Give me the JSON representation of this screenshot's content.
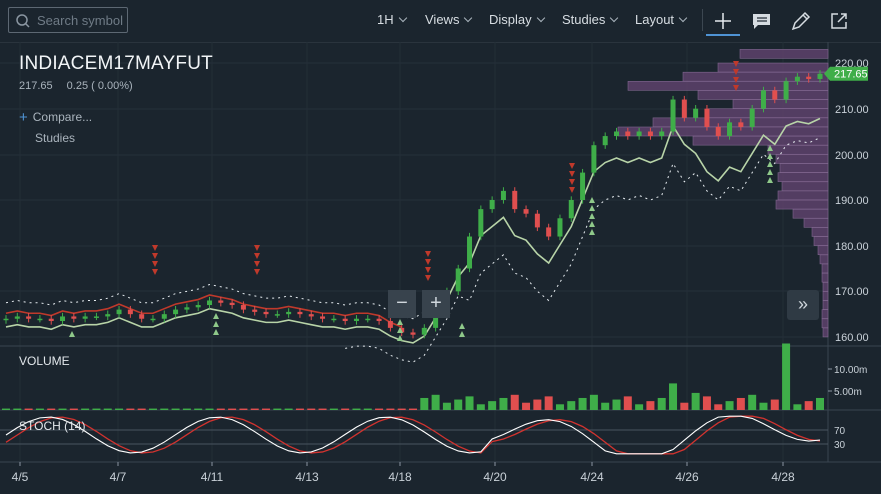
{
  "toolbar": {
    "search_placeholder": "Search symbol",
    "interval": "1H",
    "views": "Views",
    "display": "Display",
    "studies": "Studies",
    "layout": "Layout",
    "tools": [
      "crosshair-icon",
      "chat-icon",
      "draw-icon",
      "popout-icon"
    ]
  },
  "chart_header": {
    "symbol": "INDIACEM17MAYFUT",
    "last": "217.65",
    "change": "0.25 ( 0.00%)",
    "compare": "Compare...",
    "studies": "Studies"
  },
  "panes": {
    "volume_label": "VOLUME",
    "stoch_label": "STOCH (14)",
    "volume_ticks": [
      "10.00m",
      "5.00m"
    ],
    "stoch_ticks": [
      "70",
      "30"
    ]
  },
  "price_axis": {
    "ticks": [
      "220.00",
      "210.00",
      "200.00",
      "190.00",
      "180.00",
      "170.00",
      "160.00"
    ],
    "current_badge": "217.65"
  },
  "x_axis": {
    "ticks": [
      "4/5",
      "4/7",
      "4/11",
      "4/13",
      "4/18",
      "4/20",
      "4/24",
      "4/26",
      "4/28"
    ]
  },
  "zoom": {
    "minus": "−",
    "plus": "+"
  },
  "scroll_right": "»",
  "colors": {
    "background": "#1b252e",
    "up": "#3fae49",
    "down": "#e04f4f",
    "trend_line": "#b8d4a8",
    "ma_red": "#c0392b",
    "volume_profile": "#6e4f7c",
    "badge": "#3fae49",
    "stoch_k": "#ffffff",
    "stoch_d": "#d2332f"
  },
  "chart_data": {
    "type": "candlestick",
    "price_range": [
      158,
      224
    ],
    "last_price": 217.65,
    "candles_close_series": [
      164,
      164.5,
      164,
      164,
      163.5,
      164.5,
      164,
      164.5,
      164.5,
      165,
      166,
      165,
      164,
      164,
      165,
      166,
      166.5,
      167,
      168,
      167.5,
      167,
      166,
      165.5,
      165,
      165,
      165.5,
      165,
      164.5,
      164,
      164,
      163.5,
      164,
      164,
      163.5,
      162,
      161,
      160.5,
      162,
      166,
      170,
      175,
      182,
      188,
      190,
      192,
      188,
      187,
      184,
      182,
      186,
      190,
      196,
      202,
      204,
      205,
      204,
      205,
      204,
      205,
      212,
      208,
      210,
      206,
      204,
      207,
      206,
      210,
      214,
      212,
      216,
      217,
      216.5,
      217.65
    ]
  }
}
